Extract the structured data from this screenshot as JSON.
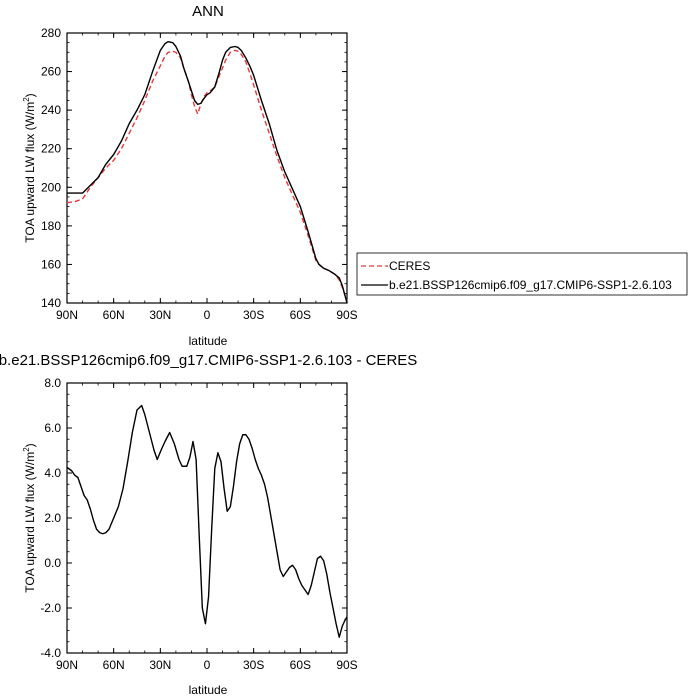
{
  "chart_data": [
    {
      "type": "line",
      "title": "ANN",
      "xlabel": "latitude",
      "ylabel": "TOA upward LW flux (W/m²)",
      "ylabel_main": "TOA upward LW flux (W/m",
      "ylabel_sup": "2",
      "ylabel_end": ")",
      "xlim": [
        -90,
        90
      ],
      "ylim": [
        140,
        280
      ],
      "x_ticks": [
        -90,
        -60,
        -30,
        0,
        30,
        60,
        90
      ],
      "x_tick_labels": [
        "90N",
        "60N",
        "30N",
        "0",
        "30S",
        "60S",
        "90S"
      ],
      "y_ticks": [
        140,
        160,
        180,
        200,
        220,
        240,
        260,
        280
      ],
      "y_tick_labels": [
        "140",
        "160",
        "180",
        "200",
        "220",
        "240",
        "260",
        "280"
      ],
      "legend_position": "right",
      "series": [
        {
          "name": "CERES",
          "color": "#e8383d",
          "dash": "dashed",
          "x": [
            -90,
            -85,
            -80,
            -75,
            -70,
            -65,
            -60,
            -55,
            -50,
            -45,
            -40,
            -35,
            -30,
            -27,
            -25,
            -22,
            -20,
            -17,
            -15,
            -12,
            -10,
            -8,
            -6,
            -4,
            -2,
            0,
            2,
            5,
            8,
            10,
            12,
            15,
            18,
            20,
            22,
            25,
            28,
            30,
            35,
            40,
            45,
            50,
            55,
            60,
            65,
            70,
            72,
            75,
            78,
            80,
            82,
            85,
            87,
            90
          ],
          "y": [
            192,
            192.5,
            194,
            200,
            205,
            210,
            214,
            220,
            228,
            236,
            245,
            255,
            263,
            268,
            270,
            270.5,
            270,
            267,
            262,
            255,
            248,
            242,
            238,
            243,
            247,
            249,
            250,
            252,
            258,
            262,
            266,
            270,
            271,
            270.5,
            269,
            265,
            258,
            253,
            240,
            228,
            216,
            205,
            196,
            187,
            175,
            162,
            160,
            158,
            157,
            156,
            155,
            152,
            148,
            141
          ]
        },
        {
          "name": "b.e21.BSSP126cmip6.f09_g17.CMIP6-SSP1-2.6.103",
          "color": "#000000",
          "dash": "solid",
          "x": [
            -90,
            -85,
            -80,
            -75,
            -70,
            -65,
            -60,
            -55,
            -50,
            -45,
            -40,
            -35,
            -30,
            -27,
            -25,
            -22,
            -20,
            -17,
            -15,
            -12,
            -10,
            -8,
            -6,
            -4,
            -2,
            0,
            2,
            5,
            8,
            10,
            12,
            15,
            18,
            20,
            22,
            25,
            28,
            30,
            35,
            40,
            45,
            50,
            55,
            60,
            65,
            70,
            72,
            75,
            78,
            80,
            82,
            85,
            87,
            90
          ],
          "y": [
            197,
            197,
            197,
            201,
            205,
            212,
            217,
            224,
            233,
            240,
            248,
            260,
            271,
            274.5,
            275.5,
            275,
            273,
            268,
            262,
            255,
            250,
            245,
            243,
            243.5,
            246,
            248,
            249,
            252,
            260,
            266,
            270,
            272.5,
            273,
            272.5,
            271,
            267,
            262,
            258,
            245,
            233,
            219,
            208,
            199,
            190,
            177,
            163,
            160,
            158,
            157,
            156,
            155,
            153,
            149,
            140
          ]
        }
      ]
    },
    {
      "type": "line",
      "title": "b.e21.BSSP126cmip6.f09_g17.CMIP6-SSP1-2.6.103 - CERES",
      "xlabel": "latitude",
      "ylabel": "TOA upward LW flux (W/m²)",
      "ylabel_main": "TOA upward LW flux (W/m",
      "ylabel_sup": "2",
      "ylabel_end": ")",
      "xlim": [
        -90,
        90
      ],
      "ylim": [
        -4,
        8
      ],
      "x_ticks": [
        -90,
        -60,
        -30,
        0,
        30,
        60,
        90
      ],
      "x_tick_labels": [
        "90N",
        "60N",
        "30N",
        "0",
        "30S",
        "60S",
        "90S"
      ],
      "y_ticks": [
        -4,
        -2,
        0,
        2,
        4,
        6,
        8
      ],
      "y_tick_labels": [
        "-4.0",
        "-2.0",
        "0.0",
        "2.0",
        "4.0",
        "6.0",
        "8.0"
      ],
      "series": [
        {
          "color": "#000000",
          "dash": "solid",
          "x": [
            -90,
            -87,
            -85,
            -83,
            -81,
            -79,
            -77,
            -75,
            -73,
            -71,
            -69,
            -67,
            -65,
            -63,
            -60,
            -57,
            -54,
            -51,
            -48,
            -45,
            -42,
            -40,
            -37,
            -34,
            -32,
            -29,
            -27,
            -24,
            -21,
            -18,
            -16,
            -13,
            -11,
            -9,
            -7,
            -5,
            -3,
            -1,
            1,
            3,
            5,
            7,
            9,
            11,
            13,
            15,
            17,
            19,
            21,
            23,
            25,
            27,
            29,
            31,
            33,
            35,
            37,
            39,
            41,
            43,
            45,
            47,
            49,
            51,
            53,
            55,
            57,
            59,
            61,
            63,
            65,
            67,
            69,
            71,
            73,
            75,
            77,
            79,
            81,
            83,
            85,
            87,
            89,
            90
          ],
          "y": [
            4.25,
            4.1,
            3.9,
            3.8,
            3.4,
            3.0,
            2.8,
            2.4,
            1.9,
            1.5,
            1.35,
            1.3,
            1.35,
            1.5,
            2.0,
            2.5,
            3.3,
            4.5,
            5.8,
            6.8,
            7.0,
            6.6,
            5.8,
            5.0,
            4.6,
            5.1,
            5.4,
            5.8,
            5.3,
            4.6,
            4.3,
            4.3,
            4.7,
            5.4,
            4.6,
            1.2,
            -2.0,
            -2.7,
            -1.5,
            1.5,
            4.2,
            4.9,
            4.5,
            3.3,
            2.3,
            2.5,
            3.4,
            4.5,
            5.3,
            5.7,
            5.7,
            5.5,
            5.1,
            4.6,
            4.2,
            3.9,
            3.5,
            2.9,
            2.1,
            1.3,
            0.5,
            -0.3,
            -0.6,
            -0.4,
            -0.2,
            -0.1,
            -0.3,
            -0.7,
            -1.0,
            -1.2,
            -1.4,
            -1.0,
            -0.4,
            0.2,
            0.3,
            0.1,
            -0.5,
            -1.3,
            -2.0,
            -2.7,
            -3.3,
            -2.8,
            -2.5,
            -2.4
          ]
        }
      ]
    }
  ]
}
